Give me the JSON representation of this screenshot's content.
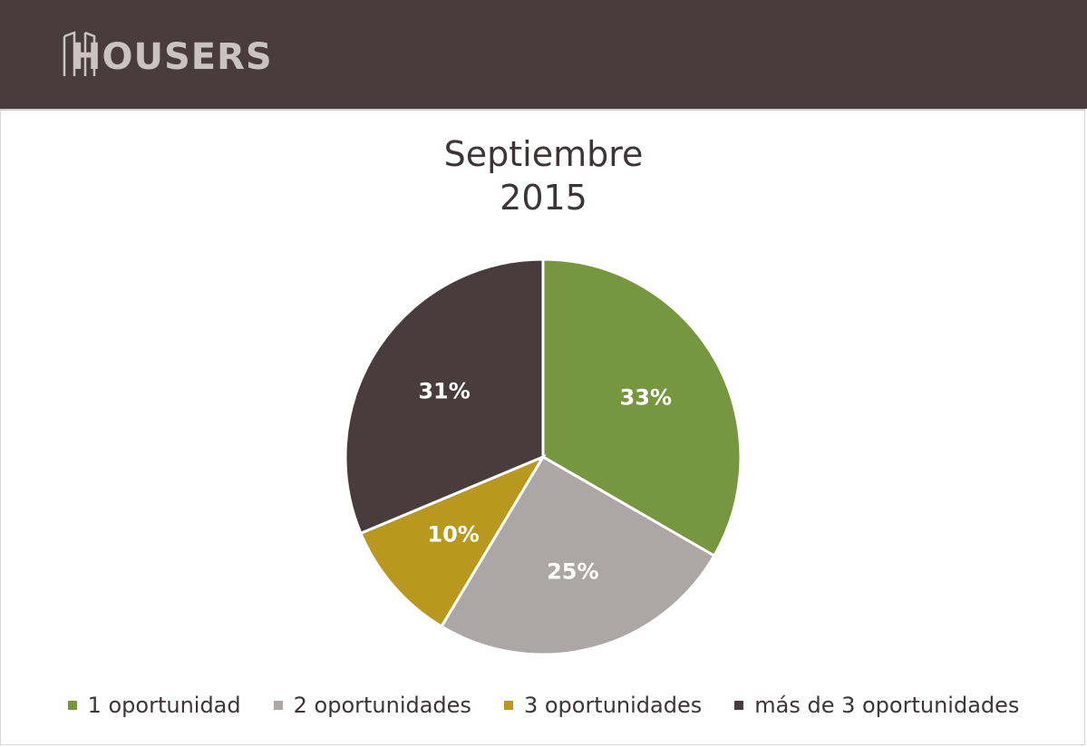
{
  "header": {
    "brand": "HOUSERS",
    "background": "#483c3f"
  },
  "chart_data": {
    "type": "pie",
    "title": "Septiembre",
    "subtitle": "2015",
    "categories": [
      "1 oportunidad",
      "2 oportunidades",
      "3 oportunidades",
      "más de 3 oportunidades"
    ],
    "values": [
      33,
      25,
      10,
      31
    ],
    "labels": [
      "33%",
      "25%",
      "10%",
      "31%"
    ],
    "colors": [
      "#779640",
      "#aca6a6",
      "#b8981e",
      "#483c3f"
    ],
    "legend_position": "bottom"
  }
}
